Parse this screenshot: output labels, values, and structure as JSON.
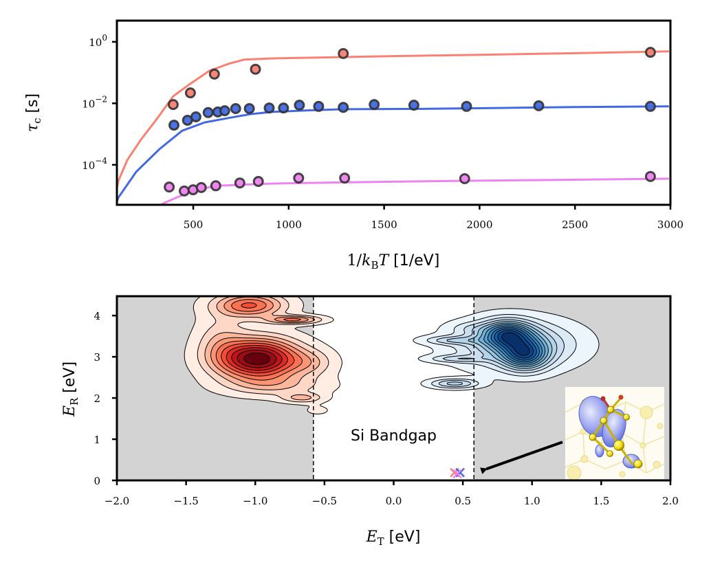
{
  "figure": {
    "panels": [
      "top",
      "bottom"
    ]
  },
  "chart_data": [
    {
      "id": "top",
      "type": "scatter",
      "title": "",
      "xlabel": "1/k_B T [1/eV]",
      "xlabel_parts": {
        "main": "1/",
        "k": "k",
        "sub": "B",
        "T": "T",
        "unit": " [1/eV]"
      },
      "ylabel": "τ_c [s]",
      "ylabel_parts": {
        "tau": "τ",
        "sub": "c",
        "unit": " [s]"
      },
      "xlim": [
        100,
        3000
      ],
      "ylim_log10": [
        -5.3,
        0.69
      ],
      "yscale": "log",
      "xticks": [
        500,
        1000,
        1500,
        2000,
        2500,
        3000
      ],
      "xtick_labels": [
        "500",
        "1000",
        "1500",
        "2000",
        "2500",
        "3000"
      ],
      "yticks_log10": [
        0,
        -2,
        -4
      ],
      "ytick_labels": [
        {
          "base": "10",
          "exp": "0"
        },
        {
          "base": "10",
          "exp": "−2"
        },
        {
          "base": "10",
          "exp": "−4"
        }
      ],
      "grid": false,
      "legend": "none",
      "series": [
        {
          "name": "red",
          "color": "#fa8072",
          "line_x": [
            100,
            108,
            154,
            226,
            298,
            395,
            478,
            585,
            682,
            765,
            909,
            1500,
            2000,
            2500,
            2992
          ],
          "line_log10y": [
            -4.75,
            -4.52,
            -3.85,
            -3.18,
            -2.6,
            -1.77,
            -1.39,
            -0.94,
            -0.72,
            -0.58,
            -0.54,
            -0.47,
            -0.42,
            -0.37,
            -0.31
          ],
          "points_x": [
            395,
            485,
            611,
            826,
            1286,
            2895
          ],
          "points_log10y": [
            -2.04,
            -1.66,
            -1.05,
            -0.89,
            -0.38,
            -0.34
          ]
        },
        {
          "name": "blue",
          "color": "#4169e1",
          "line_x": [
            100,
            108,
            201,
            323,
            442,
            560,
            682,
            801,
            909,
            1100,
            1286,
            1700,
            2100,
            2500,
            2992
          ],
          "line_log10y": [
            -5.2,
            -5.06,
            -4.23,
            -3.49,
            -2.89,
            -2.62,
            -2.48,
            -2.35,
            -2.28,
            -2.23,
            -2.19,
            -2.18,
            -2.15,
            -2.12,
            -2.1
          ],
          "points_x": [
            399,
            470,
            514,
            578,
            629,
            665,
            722,
            794,
            898,
            973,
            1056,
            1157,
            1286,
            1448,
            1656,
            1932,
            2310,
            2895
          ],
          "points_log10y": [
            -2.71,
            -2.55,
            -2.44,
            -2.3,
            -2.28,
            -2.24,
            -2.17,
            -2.17,
            -2.15,
            -2.15,
            -2.06,
            -2.1,
            -2.13,
            -2.04,
            -2.06,
            -2.1,
            -2.08,
            -2.1
          ]
        },
        {
          "name": "violet",
          "color": "#ee82ee",
          "line_x": [
            334,
            406,
            503,
            621,
            909,
            1300,
            1900,
            2400,
            2992
          ],
          "line_log10y": [
            -5.28,
            -5.08,
            -4.83,
            -4.68,
            -4.61,
            -4.57,
            -4.52,
            -4.49,
            -4.45
          ],
          "points_x": [
            374,
            453,
            499,
            542,
            618,
            744,
            841,
            1052,
            1293,
            1922,
            2895
          ],
          "points_log10y": [
            -4.72,
            -4.85,
            -4.81,
            -4.74,
            -4.68,
            -4.59,
            -4.54,
            -4.43,
            -4.43,
            -4.45,
            -4.38
          ]
        }
      ]
    },
    {
      "id": "bottom",
      "type": "heatmap",
      "subtype": "kde-contour",
      "title": "",
      "xlabel": "E_T [eV]",
      "xlabel_parts": {
        "E": "E",
        "sub": "T",
        "unit": " [eV]"
      },
      "ylabel": "E_R [eV]",
      "ylabel_parts": {
        "E": "E",
        "sub": "R",
        "unit": " [eV]"
      },
      "xlim": [
        -2.0,
        2.0
      ],
      "ylim": [
        0,
        4.47
      ],
      "xticks": [
        -2.0,
        -1.5,
        -1.0,
        -0.5,
        0.0,
        0.5,
        1.0,
        1.5,
        2.0
      ],
      "xtick_labels": [
        "−2.0",
        "−1.5",
        "−1.0",
        "−0.5",
        "0.0",
        "0.5",
        "1.0",
        "1.5",
        "2.0"
      ],
      "yticks": [
        0,
        1,
        2,
        3,
        4
      ],
      "ytick_labels": [
        "0",
        "1",
        "2",
        "3",
        "4"
      ],
      "grid": false,
      "legend": "none",
      "shaded_regions": [
        {
          "x0": -2.0,
          "x1": -0.58,
          "color": "#d3d3d3"
        },
        {
          "x0": 0.58,
          "x1": 2.0,
          "color": "#d3d3d3"
        }
      ],
      "band_edges": [
        -0.58,
        0.58
      ],
      "annotations": [
        {
          "text": "Si Bandgap",
          "x": 0.0,
          "y": 1.1
        }
      ],
      "arrow": {
        "from": [
          1.22,
          0.93
        ],
        "to": [
          0.62,
          0.21
        ]
      },
      "markers": [
        {
          "x": 0.44,
          "y": 0.19,
          "color": "#fa8072",
          "symbol": "x"
        },
        {
          "x": 0.48,
          "y": 0.19,
          "color": "#4169e1",
          "symbol": "x"
        },
        {
          "x": 0.46,
          "y": 0.16,
          "color": "#ee82ee",
          "symbol": "x"
        }
      ],
      "inset_image": {
        "description": "defect orbital isosurface (blue lobes) on yellow Si lattice with red atoms",
        "anchor": [
          1.25,
          0.0
        ],
        "extent": [
          0.72,
          2.2
        ]
      },
      "kde": [
        {
          "name": "red-density",
          "colormap": "Reds",
          "levels": 10,
          "components": [
            {
              "mx": -0.98,
              "my": 2.95,
              "sx": 0.2,
              "sy": 0.33,
              "w": 1.0
            },
            {
              "mx": -1.04,
              "my": 4.25,
              "sx": 0.17,
              "sy": 0.2,
              "w": 0.55
            },
            {
              "mx": -0.72,
              "my": 3.9,
              "sx": 0.13,
              "sy": 0.07,
              "w": 0.45
            },
            {
              "mx": -0.66,
              "my": 2.0,
              "sx": 0.1,
              "sy": 0.08,
              "w": 0.25
            },
            {
              "mx": -1.25,
              "my": 3.4,
              "sx": 0.12,
              "sy": 0.45,
              "w": 0.18
            },
            {
              "mx": -0.6,
              "my": 2.85,
              "sx": 0.12,
              "sy": 0.22,
              "w": 0.18
            },
            {
              "mx": -0.55,
              "my": 1.7,
              "sx": 0.08,
              "sy": 0.1,
              "w": 0.06
            },
            {
              "mx": -0.85,
              "my": 2.3,
              "sx": 0.25,
              "sy": 0.18,
              "w": 0.2
            }
          ]
        },
        {
          "name": "blue-density",
          "colormap": "Blues",
          "levels": 12,
          "components": [
            {
              "mx": 0.82,
              "my": 3.55,
              "sx": 0.12,
              "sy": 0.22,
              "w": 0.8
            },
            {
              "mx": 0.95,
              "my": 3.05,
              "sx": 0.11,
              "sy": 0.25,
              "w": 0.8
            },
            {
              "mx": 0.88,
              "my": 3.3,
              "sx": 0.28,
              "sy": 0.38,
              "w": 0.55
            },
            {
              "mx": 0.44,
              "my": 2.35,
              "sx": 0.12,
              "sy": 0.08,
              "w": 0.42
            },
            {
              "mx": 0.42,
              "my": 3.4,
              "sx": 0.14,
              "sy": 0.07,
              "w": 0.28
            },
            {
              "mx": 0.45,
              "my": 2.95,
              "sx": 0.14,
              "sy": 0.06,
              "w": 0.26
            },
            {
              "mx": 0.55,
              "my": 3.7,
              "sx": 0.1,
              "sy": 0.1,
              "w": 0.12
            }
          ]
        }
      ]
    }
  ]
}
